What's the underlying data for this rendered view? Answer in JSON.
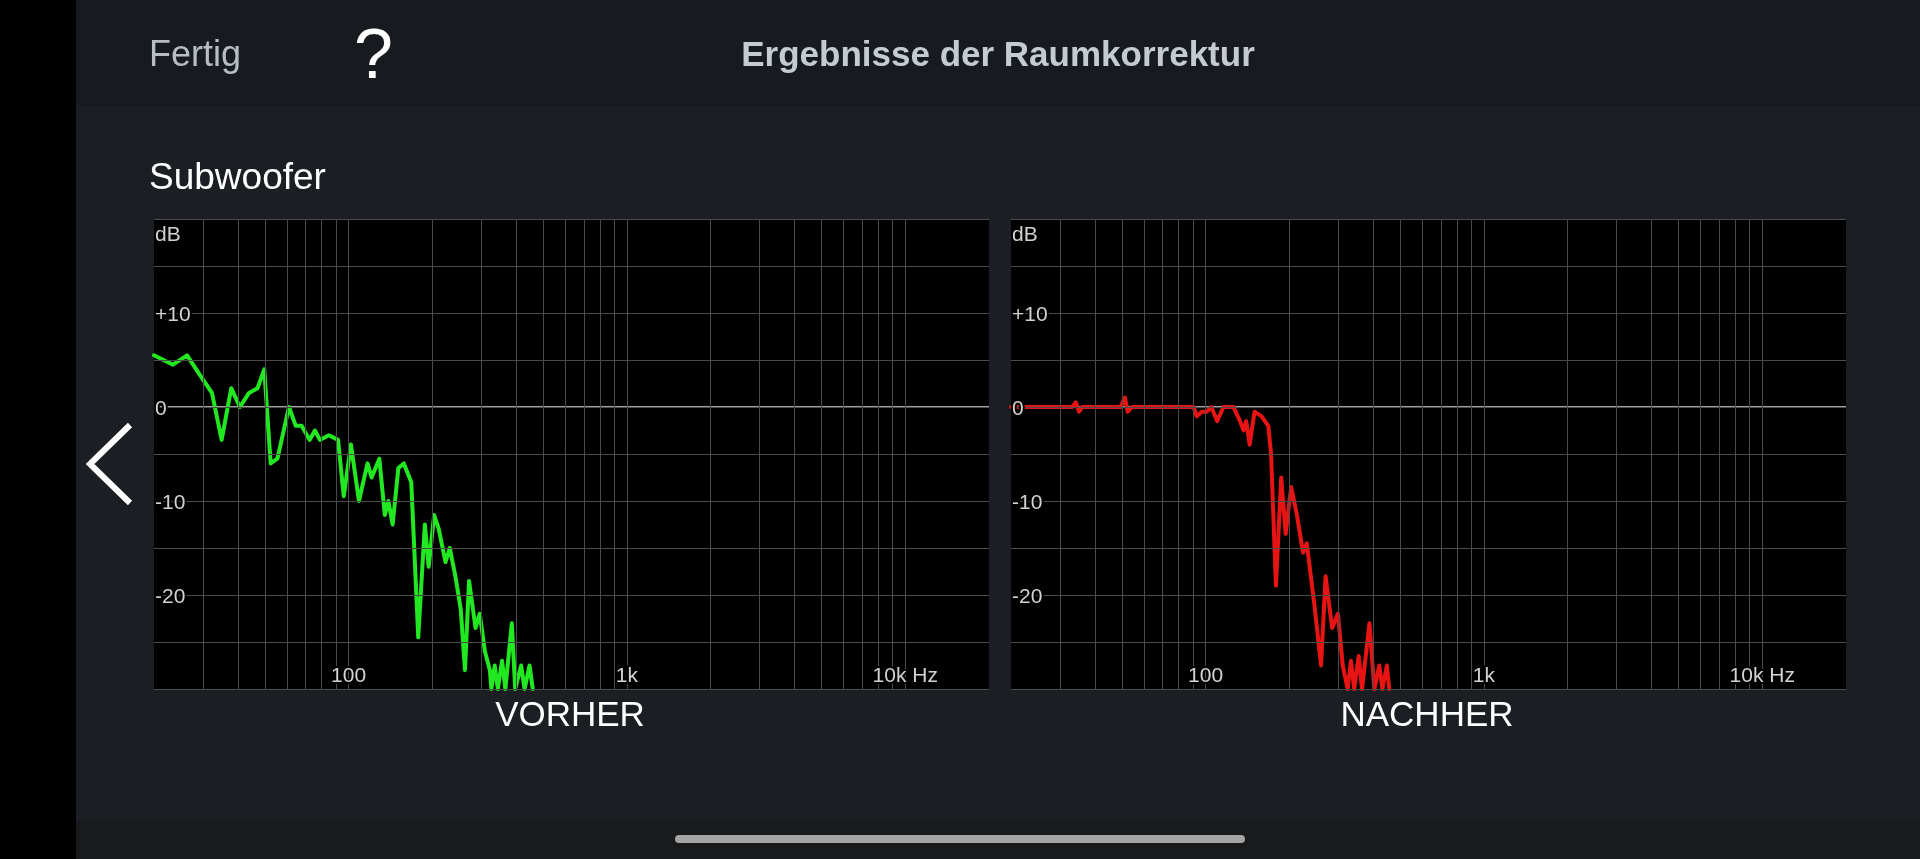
{
  "chart_data": [
    {
      "type": "other",
      "title": "Ergebnisse der Raumkorrektur",
      "subtitle": "Subwoofer",
      "annotations": [
        "Fertig",
        "?"
      ]
    },
    {
      "type": "line",
      "title": "VORHER",
      "ylabel": "dB",
      "x": [
        20,
        23.4,
        26.3,
        29.1,
        32.3,
        35,
        37.9,
        40.7,
        43.9,
        47.1,
        49.8,
        52.5,
        55.5,
        61.1,
        64.6,
        67.8,
        72.5,
        75.7,
        78.9,
        85,
        91.7,
        96.1,
        102,
        109,
        117,
        121,
        129,
        135,
        139,
        144,
        151,
        158,
        168,
        178,
        188,
        194,
        203,
        211,
        223,
        231,
        242,
        253,
        262,
        271,
        286,
        296,
        309,
        322,
        326,
        335,
        344,
        356,
        366,
        386,
        397,
        417,
        429,
        447,
        459
      ],
      "series": [
        {
          "color": "#22e822",
          "values": [
            5.5,
            4.5,
            5.5,
            3.5,
            1.5,
            -3.5,
            2,
            0,
            1.5,
            2,
            4,
            -6,
            -5.5,
            0,
            -2,
            -2,
            -3.5,
            -2.5,
            -3.5,
            -3,
            -3.5,
            -9.5,
            -4,
            -10,
            -6,
            -7.5,
            -5.5,
            -11.5,
            -10,
            -12.5,
            -6.5,
            -6,
            -8,
            -24.5,
            -12.5,
            -17,
            -11.5,
            -13,
            -16.5,
            -15,
            -18,
            -21.5,
            -28,
            -18.5,
            -23.5,
            -22,
            -26,
            -28,
            -30,
            -27.5,
            -30,
            -27,
            -30,
            -23,
            -30,
            -27.5,
            -30,
            -27.5,
            -30
          ]
        }
      ],
      "xlim": [
        20,
        20000
      ],
      "ylim": [
        -30,
        20
      ],
      "log": "x",
      "grid": true,
      "xticks": [
        {
          "value": 30,
          "label": null
        },
        {
          "value": 40,
          "label": null
        },
        {
          "value": 50,
          "label": null
        },
        {
          "value": 60,
          "label": null
        },
        {
          "value": 70,
          "label": null
        },
        {
          "value": 80,
          "label": null
        },
        {
          "value": 90,
          "label": null
        },
        100,
        {
          "value": 200,
          "label": null
        },
        {
          "value": 300,
          "label": null
        },
        {
          "value": 400,
          "label": null
        },
        {
          "value": 500,
          "label": null
        },
        {
          "value": 600,
          "label": null
        },
        {
          "value": 700,
          "label": null
        },
        {
          "value": 800,
          "label": null
        },
        {
          "value": 900,
          "label": null
        },
        {
          "value": 1000,
          "label": "1k"
        },
        {
          "value": 2000,
          "label": null
        },
        {
          "value": 3000,
          "label": null
        },
        {
          "value": 4000,
          "label": null
        },
        {
          "value": 5000,
          "label": null
        },
        {
          "value": 6000,
          "label": null
        },
        {
          "value": 7000,
          "label": null
        },
        {
          "value": 8000,
          "label": null
        },
        {
          "value": 9000,
          "label": null
        },
        {
          "value": 10000,
          "label": "10k Hz"
        }
      ],
      "yticks": [
        {
          "value": -30,
          "label": null
        },
        {
          "value": -25,
          "label": null
        },
        -20,
        {
          "value": -15,
          "label": null
        },
        -10,
        {
          "value": -5,
          "label": null
        },
        0,
        {
          "value": 5,
          "label": null
        },
        {
          "value": 10,
          "label": "+10"
        },
        {
          "value": 15,
          "label": null
        },
        {
          "value": 20,
          "label": null
        }
      ],
      "ref_lines": [
        {
          "axis": "y",
          "value": 0,
          "color": "#d9d9d9"
        }
      ]
    },
    {
      "type": "line",
      "title": "NACHHER",
      "ylabel": "dB",
      "x": [
        20,
        26.3,
        33.2,
        34.2,
        35.1,
        36.1,
        40.8,
        49.5,
        51.3,
        52.5,
        54.4,
        68.7,
        90.5,
        93,
        96.9,
        101,
        105,
        110,
        116,
        126,
        133,
        137,
        140,
        144,
        150,
        159,
        168,
        172,
        179,
        187,
        194,
        203,
        213,
        224,
        231,
        246,
        260,
        270,
        285,
        299,
        311,
        324,
        333,
        342,
        355,
        365,
        388,
        404,
        421,
        432,
        448,
        457
      ],
      "series": [
        {
          "color": "#e81414",
          "values": [
            0,
            0,
            0,
            0.5,
            -0.5,
            0,
            0,
            0,
            1,
            -0.5,
            0,
            0,
            0,
            -1,
            -0.5,
            -0.5,
            0,
            -1.5,
            0,
            0,
            -1.5,
            -2.5,
            -1.5,
            -4,
            -0.5,
            -1,
            -2,
            -5,
            -19,
            -7.5,
            -13.5,
            -8.5,
            -11.5,
            -15.5,
            -14.5,
            -21,
            -27.5,
            -18,
            -23.5,
            -22,
            -27.5,
            -30,
            -27,
            -30,
            -26.5,
            -30,
            -23,
            -30,
            -27.5,
            -30,
            -27.5,
            -30
          ]
        }
      ],
      "xlim": [
        20,
        20000
      ],
      "ylim": [
        -30,
        20
      ],
      "log": "x",
      "grid": true,
      "xticks": [
        {
          "value": 30,
          "label": null
        },
        {
          "value": 40,
          "label": null
        },
        {
          "value": 50,
          "label": null
        },
        {
          "value": 60,
          "label": null
        },
        {
          "value": 70,
          "label": null
        },
        {
          "value": 80,
          "label": null
        },
        {
          "value": 90,
          "label": null
        },
        100,
        {
          "value": 200,
          "label": null
        },
        {
          "value": 300,
          "label": null
        },
        {
          "value": 400,
          "label": null
        },
        {
          "value": 500,
          "label": null
        },
        {
          "value": 600,
          "label": null
        },
        {
          "value": 700,
          "label": null
        },
        {
          "value": 800,
          "label": null
        },
        {
          "value": 900,
          "label": null
        },
        {
          "value": 1000,
          "label": "1k"
        },
        {
          "value": 2000,
          "label": null
        },
        {
          "value": 3000,
          "label": null
        },
        {
          "value": 4000,
          "label": null
        },
        {
          "value": 5000,
          "label": null
        },
        {
          "value": 6000,
          "label": null
        },
        {
          "value": 7000,
          "label": null
        },
        {
          "value": 8000,
          "label": null
        },
        {
          "value": 9000,
          "label": null
        },
        {
          "value": 10000,
          "label": "10k Hz"
        }
      ],
      "yticks": [
        {
          "value": -30,
          "label": null
        },
        {
          "value": -25,
          "label": null
        },
        -20,
        {
          "value": -15,
          "label": null
        },
        -10,
        {
          "value": -5,
          "label": null
        },
        0,
        {
          "value": 5,
          "label": null
        },
        {
          "value": 10,
          "label": "+10"
        },
        {
          "value": 15,
          "label": null
        },
        {
          "value": 20,
          "label": null
        }
      ],
      "ref_lines": [
        {
          "axis": "y",
          "value": 0,
          "color": "#d9d9d9"
        }
      ]
    }
  ]
}
